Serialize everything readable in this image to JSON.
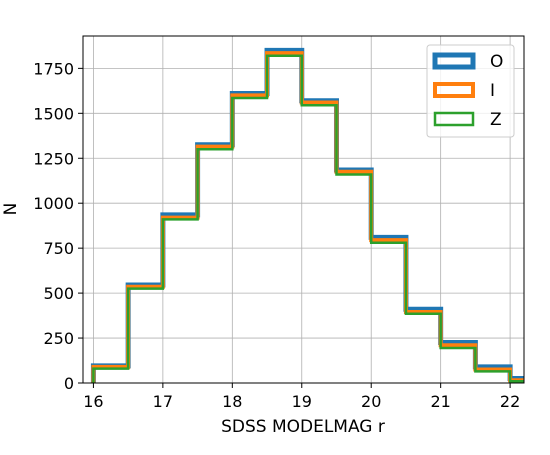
{
  "chart_data": {
    "type": "histogram",
    "xlabel": "SDSS MODELMAG r",
    "ylabel": "N",
    "xlim": [
      15.85,
      22.2
    ],
    "ylim": [
      0,
      1930
    ],
    "grid": true,
    "legend_position": "top-right",
    "bin_edges": [
      16,
      16.5,
      17,
      17.5,
      18,
      18.5,
      19,
      19.5,
      20,
      20.5,
      21,
      21.5,
      22,
      22.5
    ],
    "x_ticks": [
      16,
      17,
      18,
      19,
      20,
      21,
      22
    ],
    "x_tick_labels": [
      "16",
      "17",
      "18",
      "19",
      "20",
      "21",
      "22"
    ],
    "y_ticks": [
      0,
      250,
      500,
      750,
      1000,
      1250,
      1500,
      1750
    ],
    "y_tick_labels": [
      "0",
      "250",
      "500",
      "750",
      "1000",
      "1250",
      "1500",
      "1750"
    ],
    "series": [
      {
        "name": "O",
        "color": "#1f77b4",
        "line_width": 5,
        "values": [
          95,
          545,
          935,
          1325,
          1610,
          1850,
          1570,
          1185,
          810,
          410,
          225,
          90,
          25
        ]
      },
      {
        "name": "I",
        "color": "#ff7f0e",
        "line_width": 4,
        "values": [
          90,
          535,
          920,
          1315,
          1600,
          1835,
          1560,
          1175,
          795,
          395,
          210,
          75,
          15
        ]
      },
      {
        "name": "Z",
        "color": "#2ca02c",
        "line_width": 2.5,
        "values": [
          80,
          525,
          910,
          1300,
          1585,
          1820,
          1545,
          1160,
          780,
          385,
          195,
          65,
          10
        ]
      }
    ]
  }
}
